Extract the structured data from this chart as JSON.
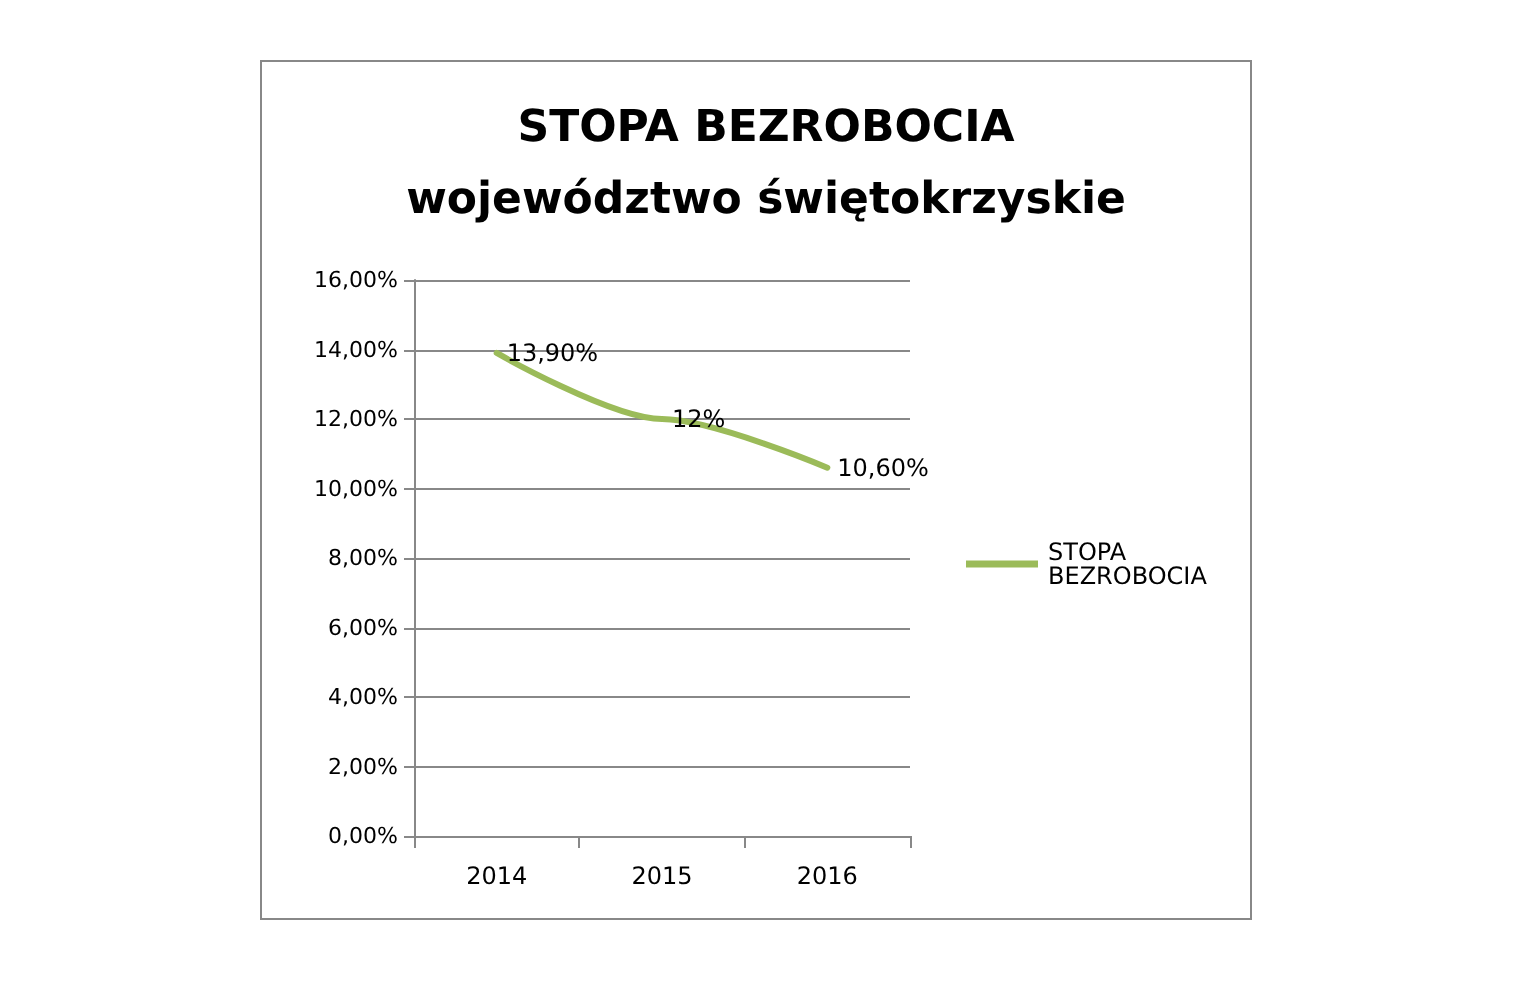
{
  "chart_data": {
    "type": "line",
    "title": "STOPA BEZROBOCIA",
    "subtitle": "województwo świętokrzyskie",
    "categories": [
      "2014",
      "2015",
      "2016"
    ],
    "series": [
      {
        "name": "STOPA BEZROBOCIA",
        "color": "#9bbb59",
        "values": [
          13.9,
          12,
          10.6
        ],
        "value_labels": [
          "13,90%",
          "12%",
          "10,60%"
        ]
      }
    ],
    "ylim": [
      0,
      16
    ],
    "yticks": [
      {
        "value": 0,
        "label": "0,00%"
      },
      {
        "value": 2,
        "label": "2,00%"
      },
      {
        "value": 4,
        "label": "4,00%"
      },
      {
        "value": 6,
        "label": "6,00%"
      },
      {
        "value": 8,
        "label": "8,00%"
      },
      {
        "value": 10,
        "label": "10,00%"
      },
      {
        "value": 12,
        "label": "12,00%"
      },
      {
        "value": 14,
        "label": "14,00%"
      },
      {
        "value": 16,
        "label": "16,00%"
      }
    ],
    "grid": "y",
    "legend": "right",
    "marker": "none",
    "line_style": "solid"
  }
}
